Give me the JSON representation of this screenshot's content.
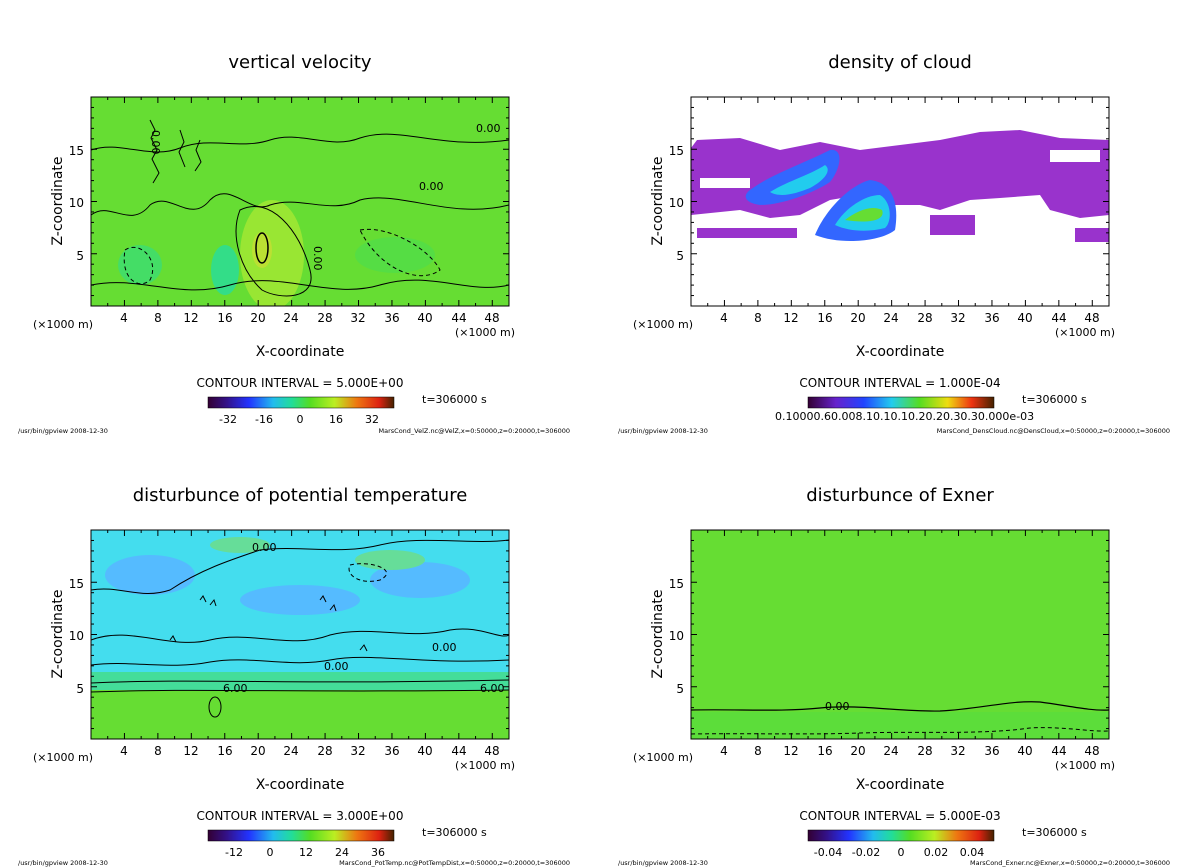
{
  "chart_data": [
    {
      "type": "heatmap",
      "title": "vertical velocity",
      "xlabel": "X-coordinate",
      "ylabel": "Z-coordinate",
      "x_unit_left": "(×1000 m)",
      "x_unit_right": "(×1000 m)",
      "xlim": [
        0,
        50
      ],
      "ylim": [
        0,
        20
      ],
      "x_ticks": [
        "4",
        "8",
        "12",
        "16",
        "20",
        "24",
        "28",
        "32",
        "36",
        "40",
        "44",
        "48"
      ],
      "y_ticks": [
        "5",
        "10",
        "15"
      ],
      "contour_interval": "CONTOUR INTERVAL = 5.000E+00",
      "time": "t=306000 s",
      "colorbar_ticks": [
        "-32",
        "-16",
        "0",
        "16",
        "32"
      ],
      "contour_labels": [
        {
          "text": "0.00",
          "x": 47,
          "z": 15.5
        },
        {
          "text": "0.00",
          "x": 8,
          "z": 14.5
        },
        {
          "text": "0.00",
          "x": 27,
          "z": 7.5
        },
        {
          "text": "0.00",
          "x": 40,
          "z": 11
        }
      ],
      "footer_left": "/usr/bin/gpview  2008-12-30",
      "footer_right": "MarsCond_VelZ.nc@VelZ,x=0:50000,z=0:20000,t=306000"
    },
    {
      "type": "heatmap",
      "title": "density of cloud",
      "xlabel": "X-coordinate",
      "ylabel": "Z-coordinate",
      "x_unit_left": "(×1000 m)",
      "x_unit_right": "(×1000 m)",
      "xlim": [
        0,
        50
      ],
      "ylim": [
        0,
        20
      ],
      "x_ticks": [
        "4",
        "8",
        "12",
        "16",
        "20",
        "24",
        "28",
        "32",
        "36",
        "40",
        "44",
        "48"
      ],
      "y_ticks": [
        "5",
        "10",
        "15"
      ],
      "contour_interval": "CONTOUR INTERVAL = 1.000E-04",
      "time": "t=306000 s",
      "colorbar_ticks_text": "0.10000.60.008.10.10.10.20.20.30.30.000e-03",
      "footer_left": "/usr/bin/gpview  2008-12-30",
      "footer_right": "MarsCond_DensCloud.nc@DensCloud,x=0:50000,z=0:20000,t=306000"
    },
    {
      "type": "heatmap",
      "title": "disturbunce of potential temperature",
      "xlabel": "X-coordinate",
      "ylabel": "Z-coordinate",
      "x_unit_left": "(×1000 m)",
      "x_unit_right": "(×1000 m)",
      "xlim": [
        0,
        50
      ],
      "ylim": [
        0,
        20
      ],
      "x_ticks": [
        "4",
        "8",
        "12",
        "16",
        "20",
        "24",
        "28",
        "32",
        "36",
        "40",
        "44",
        "48"
      ],
      "y_ticks": [
        "5",
        "10",
        "15"
      ],
      "contour_interval": "CONTOUR INTERVAL = 3.000E+00",
      "time": "t=306000 s",
      "colorbar_ticks": [
        "-12",
        "0",
        "12",
        "24",
        "36"
      ],
      "contour_labels": [
        {
          "text": "0.00",
          "x": 21,
          "z": 18.5
        },
        {
          "text": "0.00",
          "x": 42,
          "z": 9
        },
        {
          "text": "0.00",
          "x": 30.5,
          "z": 6.8
        },
        {
          "text": "6.00",
          "x": 17,
          "z": 4.7
        },
        {
          "text": "6.00",
          "x": 48,
          "z": 4.7
        }
      ],
      "footer_left": "/usr/bin/gpview  2008-12-30",
      "footer_right": "MarsCond_PotTemp.nc@PotTempDist,x=0:50000,z=0:20000,t=306000"
    },
    {
      "type": "heatmap",
      "title": "disturbunce of Exner",
      "xlabel": "X-coordinate",
      "ylabel": "Z-coordinate",
      "x_unit_left": "(×1000 m)",
      "x_unit_right": "(×1000 m)",
      "xlim": [
        0,
        50
      ],
      "ylim": [
        0,
        20
      ],
      "x_ticks": [
        "4",
        "8",
        "12",
        "16",
        "20",
        "24",
        "28",
        "32",
        "36",
        "40",
        "44",
        "48"
      ],
      "y_ticks": [
        "5",
        "10",
        "15"
      ],
      "contour_interval": "CONTOUR INTERVAL = 5.000E-03",
      "time": "t=306000 s",
      "colorbar_ticks": [
        "-0.04",
        "-0.02",
        "0",
        "0.02",
        "0.04"
      ],
      "contour_labels": [
        {
          "text": "0.00",
          "x": 18,
          "z": 3.2
        }
      ],
      "footer_left": "/usr/bin/gpview  2008-12-30",
      "footer_right": "MarsCond_Exner.nc@Exner,x=0:50000,z=0:20000,t=306000"
    }
  ],
  "colors": {
    "field_green": "#66dd33",
    "cyan": "#44ddee",
    "purple": "#9933cc",
    "cloud_blue": "#3366ff",
    "cloud_cyan": "#22ccee"
  }
}
